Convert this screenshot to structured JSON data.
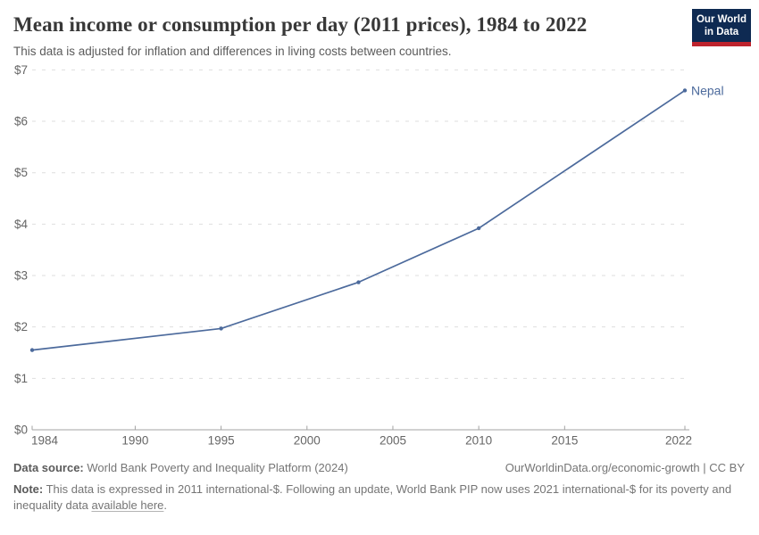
{
  "header": {
    "title": "Mean income or consumption per day (2011 prices), 1984 to 2022",
    "subtitle": "This data is adjusted for inflation and differences in living costs between countries.",
    "logo": {
      "line1": "Our World",
      "line2": "in Data"
    }
  },
  "chart_data": {
    "type": "line",
    "title": "Mean income or consumption per day (2011 prices), 1984 to 2022",
    "series": [
      {
        "name": "Nepal",
        "color": "#4c6a9c",
        "x": [
          1984,
          1995,
          2003,
          2010,
          2022
        ],
        "values": [
          1.55,
          1.97,
          2.87,
          3.92,
          6.6
        ]
      }
    ],
    "x_ticks": [
      1984,
      1990,
      1995,
      2000,
      2005,
      2010,
      2015,
      2022
    ],
    "y_tick_values": [
      0,
      1,
      2,
      3,
      4,
      5,
      6,
      7
    ],
    "y_tick_labels": [
      "$0",
      "$1",
      "$2",
      "$3",
      "$4",
      "$5",
      "$6",
      "$7"
    ],
    "xlim": [
      1984,
      2022
    ],
    "ylim": [
      0,
      7
    ],
    "grid": "horizontal-dashed",
    "legend_position": "end-of-line-label"
  },
  "footer": {
    "datasource_label": "Data source:",
    "datasource": "World Bank Poverty and Inequality Platform (2024)",
    "attribution": "OurWorldinData.org/economic-growth | CC BY",
    "note_label": "Note:",
    "note_text": "This data is expressed in 2011 international-$. Following an update, World Bank PIP now uses 2021 international-$ for its poverty and inequality data",
    "note_link": "available here",
    "note_suffix": "."
  },
  "colors": {
    "series_line": "#4c6a9c",
    "logo_navy": "#0e2a52",
    "logo_red": "#be232d",
    "gridline": "#dedede",
    "axis": "#a3a3a3",
    "tick_text": "#666666"
  }
}
